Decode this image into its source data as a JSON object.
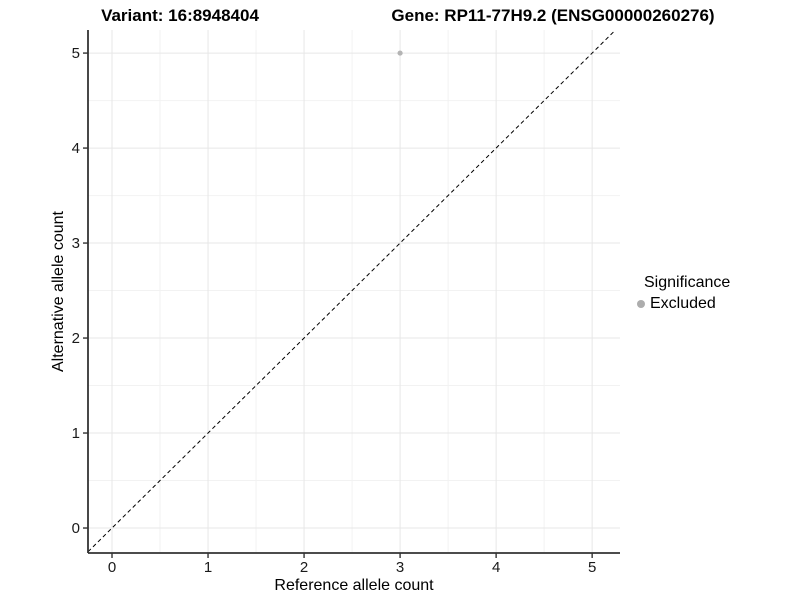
{
  "titles": {
    "variant": "Variant: 16:8948404",
    "gene": "Gene: RP11-77H9.2 (ENSG00000260276)"
  },
  "legend": {
    "title": "Significance",
    "items": [
      {
        "label": "Excluded"
      }
    ]
  },
  "colors": {
    "major_grid": "#e7e7e7",
    "minor_grid": "#f2f2f2",
    "axis": "#333333",
    "tick_text": "#1a1a1a",
    "axis_title_text": "#000000",
    "point": "#b4b4b4",
    "legend_dot": "#adadad",
    "identity_line": "#000000"
  },
  "chart_data": {
    "type": "scatter",
    "title": "Variant: 16:8948404   Gene: RP11-77H9.2 (ENSG00000260276)",
    "xlabel": "Reference allele count",
    "ylabel": "Alternative allele count",
    "xlim": [
      -0.25,
      5.29
    ],
    "ylim": [
      -0.263,
      5.243
    ],
    "x_ticks": [
      0,
      1,
      2,
      3,
      4,
      5
    ],
    "y_ticks": [
      0,
      1,
      2,
      3,
      4,
      5
    ],
    "x_minor_ticks": [
      0.5,
      1.5,
      2.5,
      3.5,
      4.5
    ],
    "y_minor_ticks": [
      0.5,
      1.5,
      2.5,
      3.5,
      4.5
    ],
    "grid": true,
    "legend_position": "right",
    "series": [
      {
        "name": "Excluded",
        "points": [
          {
            "x": 3,
            "y": 5
          }
        ]
      }
    ],
    "identity_line": {
      "show": true,
      "style": "dashed",
      "slope": 1,
      "intercept": 0
    }
  }
}
